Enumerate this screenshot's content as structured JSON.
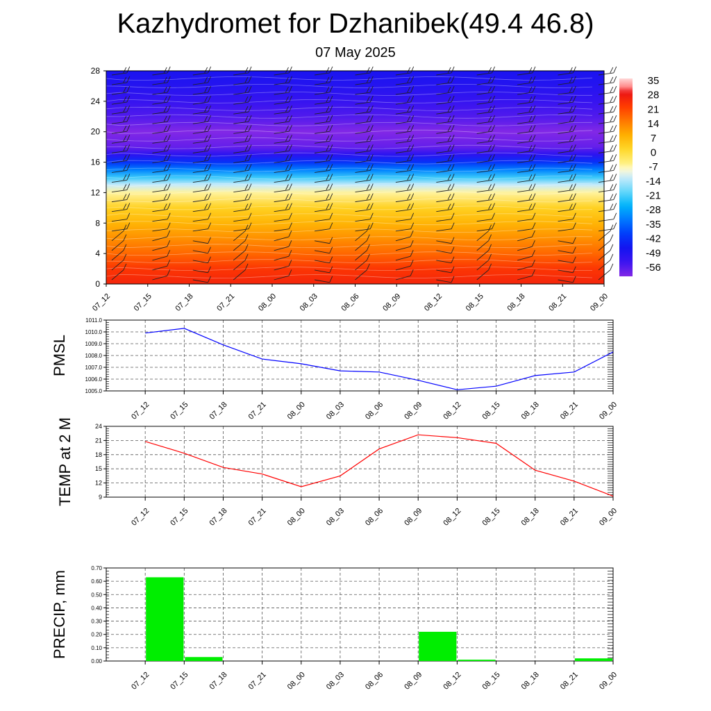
{
  "title": "Kazhydromet for Dzhanibek(49.4 46.8)",
  "subtitle": "07 May 2025",
  "chart_data": [
    {
      "type": "heatmap",
      "x_ticks": [
        "07_12",
        "07_15",
        "07_18",
        "07_21",
        "08_00",
        "08_03",
        "08_06",
        "08_09",
        "08_12",
        "08_15",
        "08_18",
        "08_21",
        "09_00"
      ],
      "y_ticks": [
        0,
        4,
        8,
        12,
        16,
        20,
        24,
        28
      ],
      "ylim": [
        0,
        28
      ],
      "colorbar": {
        "labels": [
          "35",
          "28",
          "21",
          "14",
          "7",
          "0",
          "-7",
          "-14",
          "-21",
          "-28",
          "-35",
          "-42",
          "-49",
          "-56"
        ],
        "range": [
          -63,
          35
        ]
      },
      "rows": [
        {
          "y": 0,
          "value": 25
        },
        {
          "y": 2,
          "value": 22
        },
        {
          "y": 4,
          "value": 16
        },
        {
          "y": 6,
          "value": 11
        },
        {
          "y": 8,
          "value": 6
        },
        {
          "y": 10,
          "value": 1
        },
        {
          "y": 12,
          "value": -8
        },
        {
          "y": 13,
          "value": -14
        },
        {
          "y": 14,
          "value": -24
        },
        {
          "y": 15,
          "value": -34
        },
        {
          "y": 16,
          "value": -44
        },
        {
          "y": 17,
          "value": -53
        },
        {
          "y": 18,
          "value": -60
        },
        {
          "y": 20,
          "value": -63
        },
        {
          "y": 22,
          "value": -58
        },
        {
          "y": 24,
          "value": -55
        },
        {
          "y": 26,
          "value": -52
        },
        {
          "y": 28,
          "value": -50
        }
      ],
      "wind_barbs": true
    },
    {
      "type": "line",
      "ylabel": "PMSL",
      "x": [
        "07_12",
        "07_15",
        "07_18",
        "07_21",
        "08_00",
        "08_03",
        "08_06",
        "08_09",
        "08_12",
        "08_15",
        "08_18",
        "08_21",
        "09_00"
      ],
      "values": [
        1009.9,
        1010.3,
        1008.9,
        1007.7,
        1007.3,
        1006.7,
        1006.6,
        1005.9,
        1005.1,
        1005.4,
        1006.3,
        1006.6,
        1008.3
      ],
      "ylim": [
        1005.0,
        1011.0
      ],
      "y_ticks": [
        "1005.0",
        "1006.0",
        "1007.0",
        "1008.0",
        "1009.0",
        "1010.0",
        "1011.0"
      ],
      "color": "#0000ff",
      "grid": true
    },
    {
      "type": "line",
      "ylabel": "TEMP at 2 M",
      "x": [
        "07_12",
        "07_15",
        "07_18",
        "07_21",
        "08_00",
        "08_03",
        "08_06",
        "08_09",
        "08_12",
        "08_15",
        "08_18",
        "08_21",
        "09_00"
      ],
      "values": [
        20.8,
        18.3,
        15.3,
        13.9,
        11.2,
        13.5,
        19.2,
        22.2,
        21.6,
        20.4,
        14.7,
        12.4,
        9.2
      ],
      "ylim": [
        9,
        24
      ],
      "y_ticks": [
        "9",
        "12",
        "15",
        "18",
        "21",
        "24"
      ],
      "color": "#ff0000",
      "grid": true
    },
    {
      "type": "bar",
      "ylabel": "PRECIP, mm",
      "categories": [
        "07_12",
        "07_15",
        "07_18",
        "07_21",
        "08_00",
        "08_03",
        "08_06",
        "08_09",
        "08_12",
        "08_15",
        "08_18",
        "08_21",
        "09_00"
      ],
      "values": [
        0,
        0.63,
        0.03,
        0,
        0,
        0,
        0,
        0,
        0.22,
        0.01,
        0,
        0,
        0.02
      ],
      "ylim": [
        0,
        0.7
      ],
      "y_ticks": [
        "0.00",
        "0.10",
        "0.20",
        "0.30",
        "0.40",
        "0.50",
        "0.60",
        "0.70"
      ],
      "color": "#00ee00",
      "grid": true
    }
  ]
}
